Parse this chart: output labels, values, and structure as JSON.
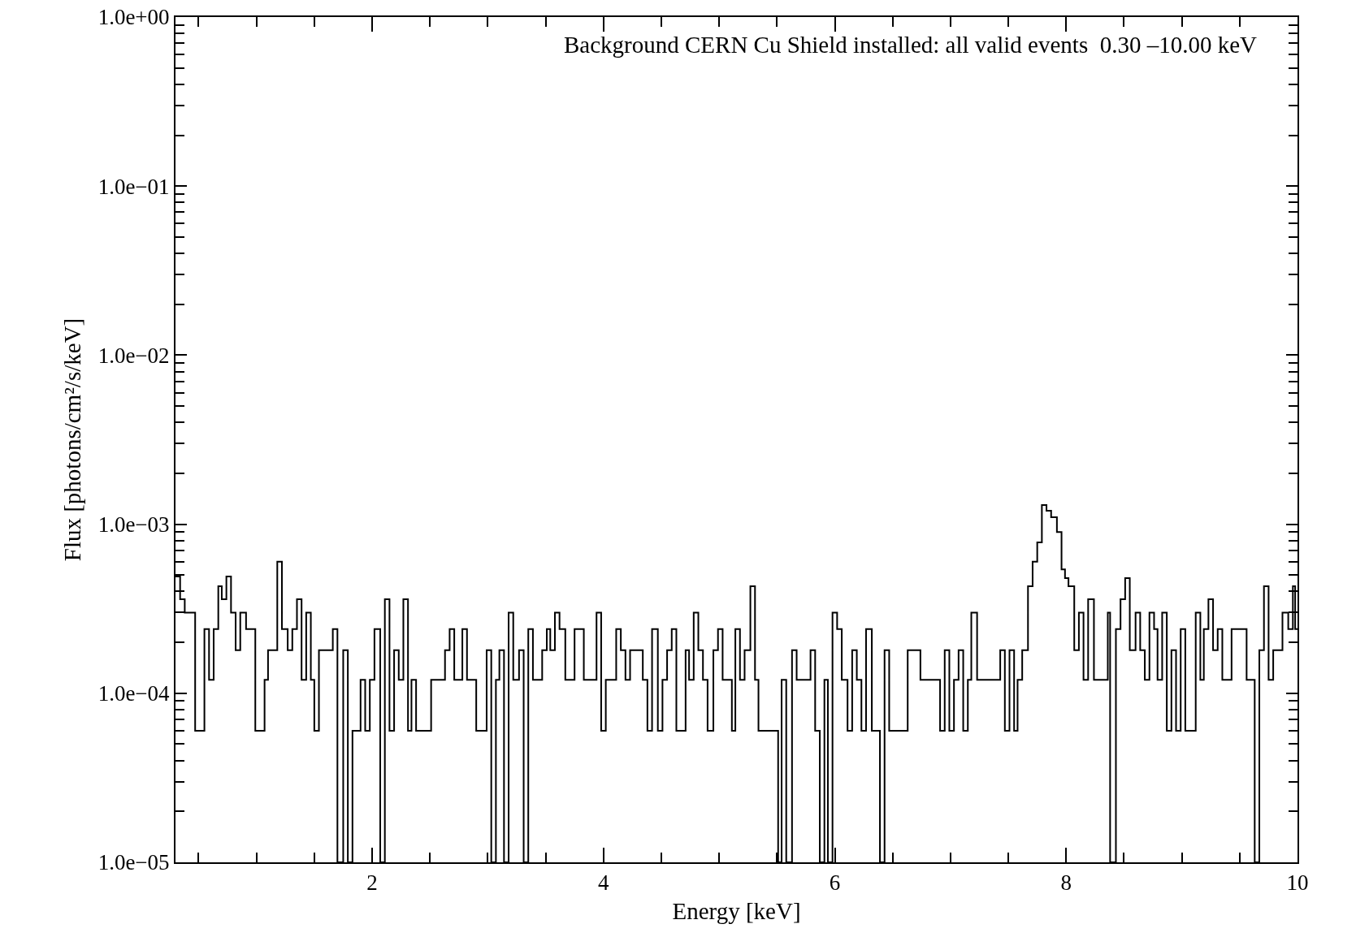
{
  "chart_data": {
    "type": "histogram",
    "title": "Background CERN Cu Shield installed: all valid events  0.30 –10.00 keV",
    "xlabel": "Energy [keV]",
    "ylabel": "Flux [photons/cm²/s/keV]",
    "log": "y",
    "grid": false,
    "color": "#000000",
    "xlim": [
      0.3,
      10
    ],
    "ylim": [
      1e-05,
      1
    ],
    "xticks": [
      {
        "value": 0.5,
        "label": null
      },
      {
        "value": 1,
        "label": null
      },
      {
        "value": 1.5,
        "label": null
      },
      2,
      {
        "value": 2.5,
        "label": null
      },
      {
        "value": 3,
        "label": null
      },
      {
        "value": 3.5,
        "label": null
      },
      4,
      {
        "value": 4.5,
        "label": null
      },
      {
        "value": 5,
        "label": null
      },
      {
        "value": 5.5,
        "label": null
      },
      6,
      {
        "value": 6.5,
        "label": null
      },
      {
        "value": 7,
        "label": null
      },
      {
        "value": 7.5,
        "label": null
      },
      8,
      {
        "value": 8.5,
        "label": null
      },
      {
        "value": 9,
        "label": null
      },
      {
        "value": 9.5,
        "label": null
      },
      10
    ],
    "yticks": [
      {
        "value": 1e-05,
        "label": "1.0e−05"
      },
      {
        "value": 0.0001,
        "label": "1.0e−04"
      },
      {
        "value": 0.001,
        "label": "1.0e−03"
      },
      {
        "value": 0.01,
        "label": "1.0e−02"
      },
      {
        "value": 0.1,
        "label": "1.0e−01"
      },
      {
        "value": 1,
        "label": "1.0e+00"
      }
    ],
    "bins": [
      0.3,
      0.34,
      0.38,
      0.47,
      0.55,
      0.59,
      0.63,
      0.67,
      0.7,
      0.74,
      0.78,
      0.82,
      0.86,
      0.91,
      0.99,
      1.07,
      1.1,
      1.18,
      1.22,
      1.27,
      1.31,
      1.35,
      1.39,
      1.43,
      1.47,
      1.5,
      1.54,
      1.66,
      1.7,
      1.75,
      1.79,
      1.83,
      1.9,
      1.94,
      1.98,
      2.02,
      2.07,
      2.11,
      2.15,
      2.19,
      2.23,
      2.27,
      2.31,
      2.34,
      2.38,
      2.51,
      2.63,
      2.67,
      2.71,
      2.78,
      2.82,
      2.9,
      2.99,
      3.03,
      3.07,
      3.1,
      3.14,
      3.18,
      3.22,
      3.27,
      3.31,
      3.35,
      3.39,
      3.47,
      3.51,
      3.54,
      3.58,
      3.62,
      3.67,
      3.75,
      3.83,
      3.94,
      3.98,
      4.02,
      4.11,
      4.15,
      4.19,
      4.23,
      4.34,
      4.38,
      4.42,
      4.47,
      4.51,
      4.55,
      4.59,
      4.63,
      4.71,
      4.74,
      4.78,
      4.82,
      4.86,
      4.9,
      4.95,
      4.99,
      5.03,
      5.11,
      5.14,
      5.18,
      5.22,
      5.27,
      5.31,
      5.34,
      5.51,
      5.54,
      5.58,
      5.63,
      5.67,
      5.79,
      5.83,
      5.87,
      5.91,
      5.94,
      5.98,
      6.02,
      6.06,
      6.11,
      6.15,
      6.19,
      6.23,
      6.27,
      6.32,
      6.39,
      6.43,
      6.47,
      6.63,
      6.74,
      6.91,
      6.95,
      6.99,
      7.03,
      7.07,
      7.11,
      7.15,
      7.18,
      7.23,
      7.43,
      7.47,
      7.51,
      7.55,
      7.58,
      7.62,
      7.67,
      7.71,
      7.75,
      7.79,
      7.83,
      7.87,
      7.92,
      7.96,
      7.99,
      8.02,
      8.07,
      8.11,
      8.15,
      8.19,
      8.24,
      8.36,
      8.38,
      8.43,
      8.47,
      8.51,
      8.55,
      8.6,
      8.64,
      8.68,
      8.72,
      8.76,
      8.79,
      8.83,
      8.87,
      8.91,
      8.95,
      8.99,
      9.03,
      9.12,
      9.16,
      9.19,
      9.23,
      9.27,
      9.31,
      9.35,
      9.43,
      9.56,
      9.63,
      9.67,
      9.71,
      9.75,
      9.79,
      9.87,
      9.92,
      9.96,
      9.98,
      10.0
    ],
    "values": [
      0.00049,
      0.00036,
      0.0003,
      6e-05,
      0.00024,
      0.00012,
      0.00024,
      0.00043,
      0.00036,
      0.00049,
      0.0003,
      0.00018,
      0.0003,
      0.00024,
      6e-05,
      0.00012,
      0.00018,
      0.0006,
      0.00024,
      0.00018,
      0.00024,
      0.00036,
      0.00012,
      0.0003,
      0.00012,
      6e-05,
      0.00018,
      0.00024,
      null,
      0.00018,
      null,
      6e-05,
      0.00012,
      6e-05,
      0.00012,
      0.00024,
      null,
      0.00036,
      6e-05,
      0.00018,
      0.00012,
      0.00036,
      6e-05,
      0.00012,
      6e-05,
      0.00012,
      0.00018,
      0.00024,
      0.00012,
      0.00024,
      0.00012,
      6e-05,
      0.00018,
      null,
      0.00012,
      0.00018,
      null,
      0.0003,
      0.00012,
      0.00018,
      null,
      0.00024,
      0.00012,
      0.00018,
      0.00024,
      0.00018,
      0.0003,
      0.00024,
      0.00012,
      0.00024,
      0.00012,
      0.0003,
      6e-05,
      0.00012,
      0.00024,
      0.00018,
      0.00012,
      0.00018,
      0.00012,
      6e-05,
      0.00024,
      6e-05,
      0.00012,
      0.00018,
      0.00024,
      6e-05,
      0.00018,
      0.00012,
      0.0003,
      0.00018,
      0.00012,
      6e-05,
      0.00018,
      0.00024,
      0.00012,
      6e-05,
      0.00024,
      0.00012,
      0.00018,
      0.00043,
      0.00012,
      6e-05,
      null,
      0.00012,
      null,
      0.00018,
      0.00012,
      0.00018,
      6e-05,
      null,
      0.00012,
      null,
      0.0003,
      0.00024,
      0.00012,
      6e-05,
      0.00018,
      0.00012,
      6e-05,
      0.00024,
      6e-05,
      null,
      0.00018,
      6e-05,
      0.00018,
      0.00012,
      6e-05,
      0.00018,
      6e-05,
      0.00012,
      0.00018,
      6e-05,
      0.00012,
      0.0003,
      0.00012,
      0.00018,
      6e-05,
      0.00018,
      6e-05,
      0.00012,
      0.00018,
      0.00043,
      0.0006,
      0.00078,
      0.0013,
      0.0012,
      0.0011,
      0.0009,
      0.00054,
      0.00048,
      0.00043,
      0.00018,
      0.0003,
      0.00012,
      0.00036,
      0.00012,
      0.0003,
      null,
      0.00024,
      0.00036,
      0.00048,
      0.00018,
      0.0003,
      0.00018,
      0.00012,
      0.0003,
      0.00024,
      0.00012,
      0.0003,
      6e-05,
      0.00018,
      6e-05,
      0.00024,
      6e-05,
      0.0003,
      0.00012,
      0.00024,
      0.00036,
      0.00018,
      0.00024,
      0.00012,
      0.00024,
      0.00012,
      null,
      0.00018,
      0.00043,
      0.00012,
      0.00018,
      0.0003,
      0.00024,
      0.00043,
      0.00024
    ]
  }
}
